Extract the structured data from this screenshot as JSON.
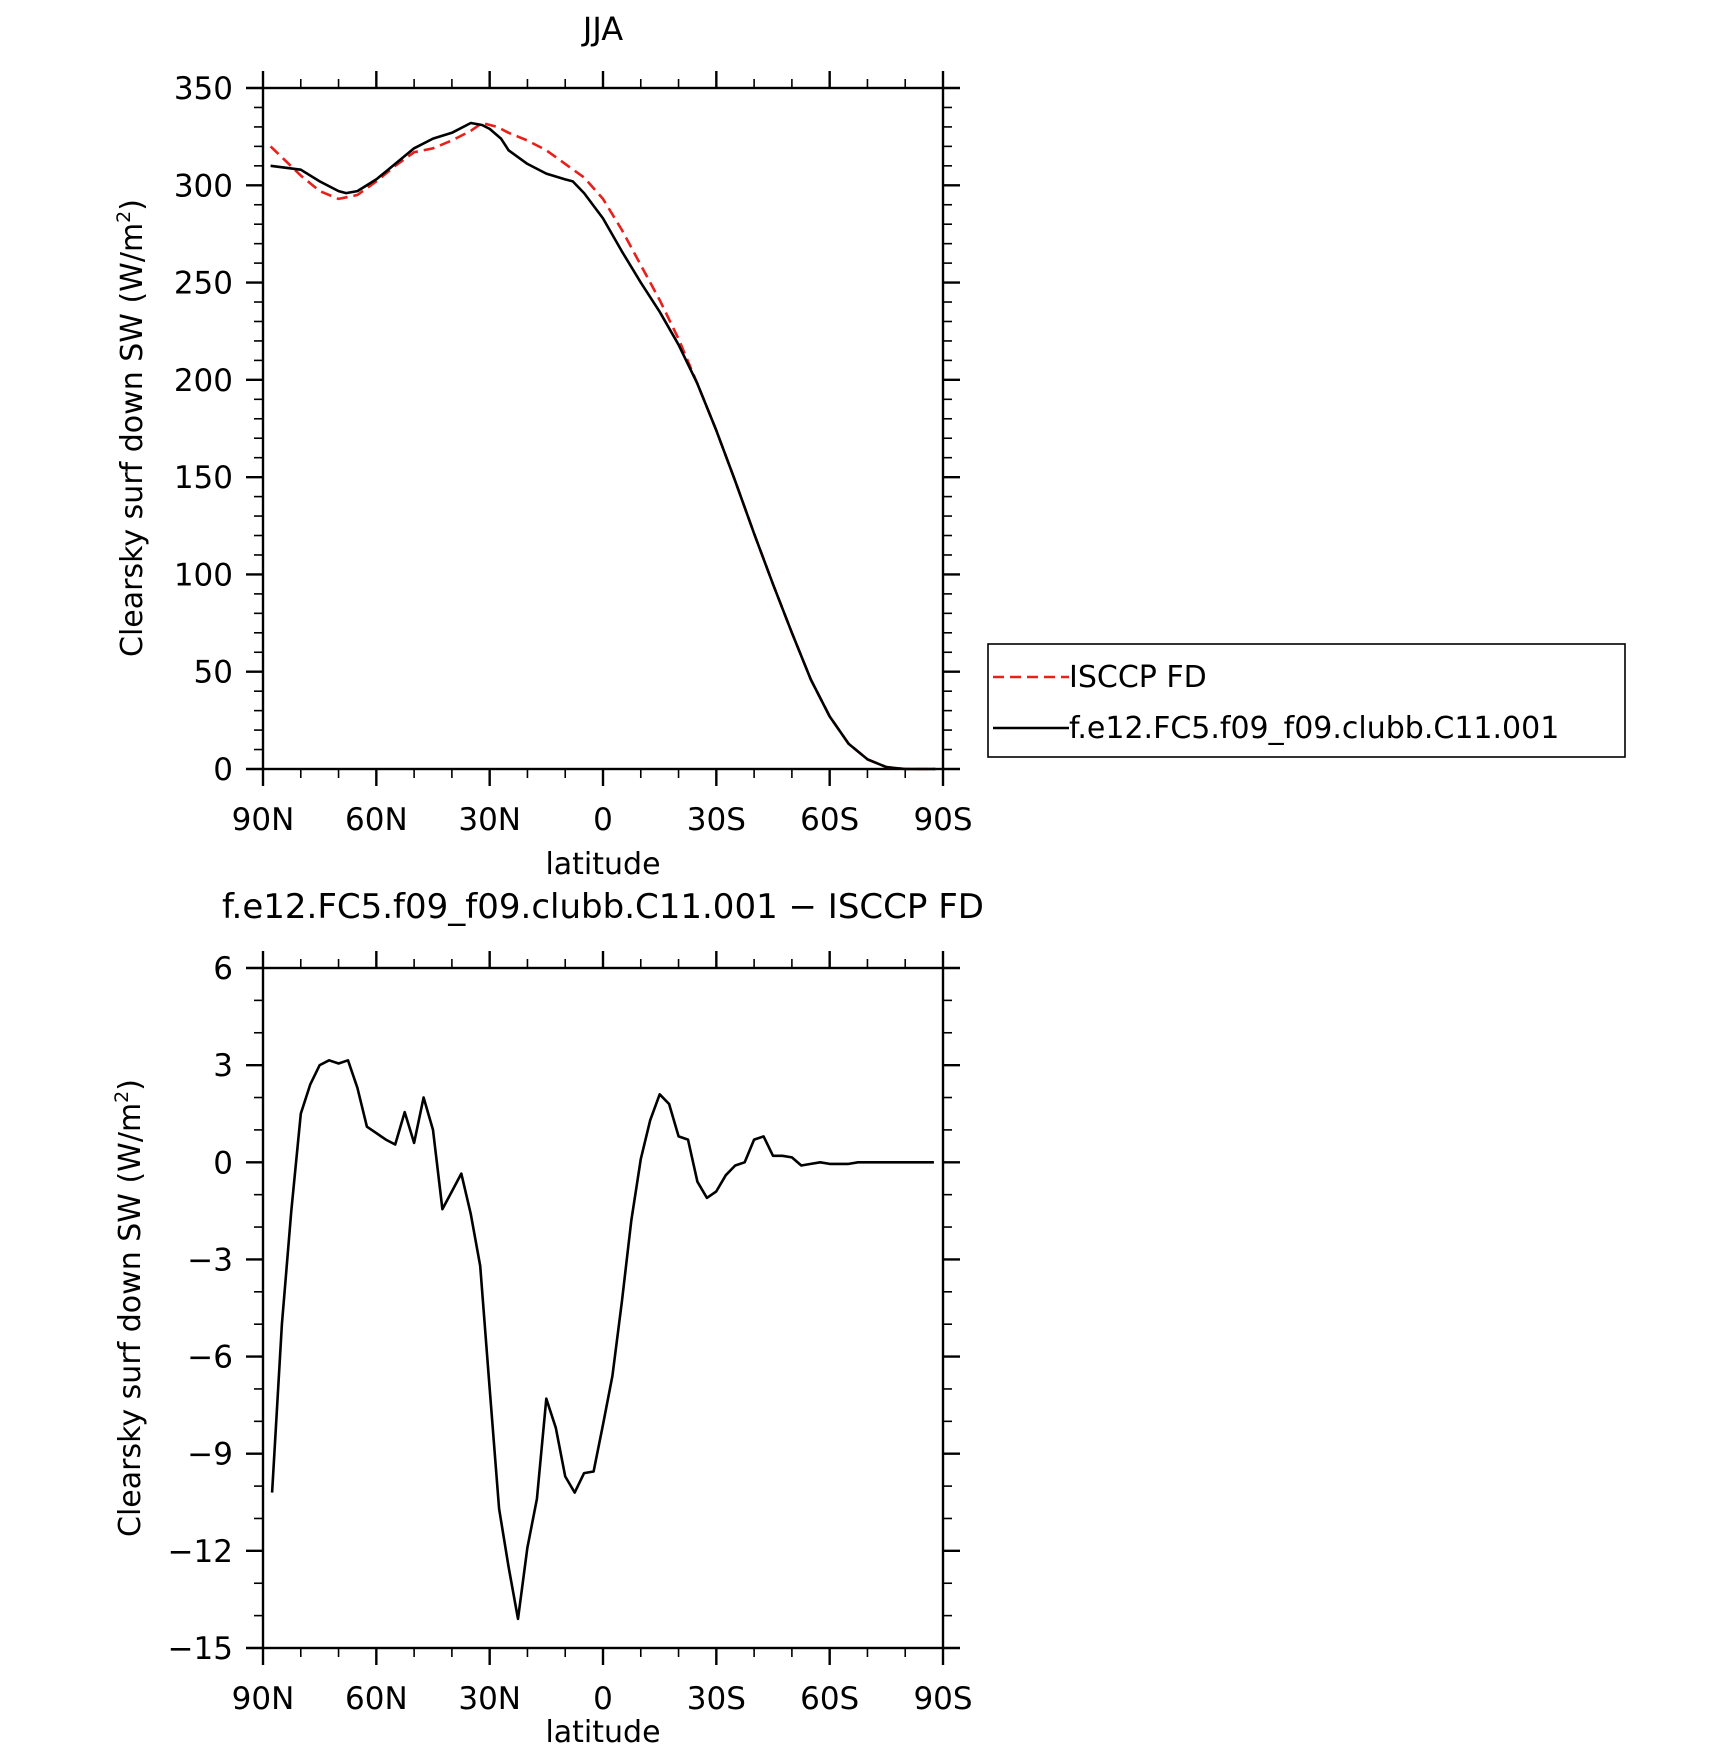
{
  "chart_data": [
    {
      "type": "line",
      "title": "JJA",
      "xlabel": "latitude",
      "ylabel": "Clearsky surf down SW (W/m",
      "ylabel_sup": "2",
      "ylabel_close": ")",
      "xlim": [
        90,
        -90
      ],
      "ylim": [
        0,
        350
      ],
      "x_ticks": [
        {
          "value": 90,
          "label": "90N"
        },
        {
          "value": 60,
          "label": "60N"
        },
        {
          "value": 30,
          "label": "30N"
        },
        {
          "value": 0,
          "label": "0"
        },
        {
          "value": -30,
          "label": "30S"
        },
        {
          "value": -60,
          "label": "60S"
        },
        {
          "value": -90,
          "label": "90S"
        }
      ],
      "y_ticks": [
        {
          "value": 0,
          "label": "0"
        },
        {
          "value": 50,
          "label": "50"
        },
        {
          "value": 100,
          "label": "100"
        },
        {
          "value": 150,
          "label": "150"
        },
        {
          "value": 200,
          "label": "200"
        },
        {
          "value": 250,
          "label": "250"
        },
        {
          "value": 300,
          "label": "300"
        },
        {
          "value": 350,
          "label": "350"
        }
      ],
      "grid": false,
      "legend_position": "right",
      "series": [
        {
          "name": "ISCCP FD",
          "color": "#e8201c",
          "style": "dashed",
          "x": [
            88,
            80,
            75,
            70,
            65,
            60,
            55,
            50,
            45,
            40,
            35,
            32,
            28,
            25,
            20,
            15,
            10,
            5,
            0,
            -5,
            -10,
            -15,
            -20,
            -25,
            -30,
            -35,
            -40,
            -45,
            -50,
            -55,
            -60,
            -65,
            -70,
            -75,
            -80,
            -85,
            -88
          ],
          "y": [
            320,
            305,
            297,
            293,
            295,
            302,
            310,
            317,
            319,
            323,
            328,
            332,
            330,
            327,
            323,
            318,
            311,
            304,
            293,
            277,
            259,
            241,
            221,
            198,
            174,
            148,
            121,
            95,
            70,
            46,
            27,
            13,
            5,
            1,
            0,
            0,
            0
          ]
        },
        {
          "name": "f.e12.FC5.f09_f09.clubb.C11.001",
          "color": "#000000",
          "style": "solid",
          "x": [
            88,
            80,
            75,
            70,
            68,
            65,
            60,
            55,
            50,
            45,
            40,
            35,
            32,
            30,
            27,
            25,
            20,
            15,
            10,
            8,
            5,
            0,
            -5,
            -10,
            -15,
            -20,
            -25,
            -30,
            -35,
            -40,
            -45,
            -50,
            -55,
            -60,
            -65,
            -70,
            -75,
            -80,
            -85,
            -88
          ],
          "y": [
            310,
            308,
            302,
            297,
            296,
            297,
            303,
            311,
            319,
            324,
            327,
            332,
            331,
            329,
            324,
            318,
            311,
            306,
            303,
            302,
            296,
            283,
            266,
            250,
            235,
            218,
            198,
            174,
            148,
            121,
            95,
            70,
            46,
            27,
            13,
            5,
            1,
            0,
            0,
            0
          ]
        }
      ]
    },
    {
      "type": "line",
      "title": "f.e12.FC5.f09_f09.clubb.C11.001 − ISCCP FD",
      "xlabel": "latitude",
      "ylabel": "Clearsky surf down SW (W/m",
      "ylabel_sup": "2",
      "ylabel_close": ")",
      "xlim": [
        90,
        -90
      ],
      "ylim": [
        -15,
        6
      ],
      "x_ticks": [
        {
          "value": 90,
          "label": "90N"
        },
        {
          "value": 60,
          "label": "60N"
        },
        {
          "value": 30,
          "label": "30N"
        },
        {
          "value": 0,
          "label": "0"
        },
        {
          "value": -30,
          "label": "30S"
        },
        {
          "value": -60,
          "label": "60S"
        },
        {
          "value": -90,
          "label": "90S"
        }
      ],
      "y_ticks": [
        {
          "value": 6,
          "label": "6"
        },
        {
          "value": 3,
          "label": "3"
        },
        {
          "value": 0,
          "label": "0"
        },
        {
          "value": -3,
          "label": "−3"
        },
        {
          "value": -6,
          "label": "−6"
        },
        {
          "value": -9,
          "label": "−9"
        },
        {
          "value": -12,
          "label": "−12"
        },
        {
          "value": -15,
          "label": "−15"
        }
      ],
      "grid": false,
      "series": [
        {
          "color": "#000000",
          "style": "solid",
          "x": [
            87.6,
            85,
            82.5,
            80,
            77.5,
            75,
            72.5,
            70,
            67.5,
            65,
            62.5,
            60,
            57.5,
            55,
            52.5,
            50,
            47.5,
            45,
            42.5,
            40,
            37.5,
            35,
            32.5,
            30,
            27.5,
            25,
            22.5,
            20,
            17.5,
            15,
            12.5,
            10,
            7.5,
            5,
            2.5,
            0,
            -2.5,
            -5,
            -7.5,
            -10,
            -12.5,
            -15,
            -17.5,
            -20,
            -22.5,
            -25,
            -27.5,
            -30,
            -32.5,
            -35,
            -37.5,
            -40,
            -42.5,
            -45,
            -47.5,
            -50,
            -52.5,
            -55,
            -57.5,
            -60,
            -62.5,
            -65,
            -67.5,
            -70,
            -72.5,
            -75,
            -77.5,
            -80,
            -82.5,
            -85,
            -87.6
          ],
          "y": [
            -10.2,
            -5,
            -1.5,
            1.5,
            2.4,
            3,
            3.15,
            3.05,
            3.15,
            2.3,
            1.1,
            0.9,
            0.7,
            0.55,
            1.55,
            0.6,
            2,
            1,
            -1.45,
            -0.9,
            -0.35,
            -1.6,
            -3.2,
            -7,
            -10.7,
            -12.5,
            -14.1,
            -11.9,
            -10.4,
            -7.3,
            -8.2,
            -9.7,
            -10.2,
            -9.6,
            -9.55,
            -8.1,
            -6.6,
            -4.3,
            -1.8,
            0.1,
            1.3,
            2.1,
            1.8,
            0.8,
            0.7,
            -0.6,
            -1.1,
            -0.9,
            -0.4,
            -0.1,
            0,
            0.7,
            0.8,
            0.2,
            0.2,
            0.15,
            -0.1,
            -0.05,
            0,
            -0.05,
            -0.05,
            -0.05,
            0,
            0,
            0,
            0,
            0,
            0,
            0,
            0,
            0
          ]
        }
      ]
    }
  ]
}
